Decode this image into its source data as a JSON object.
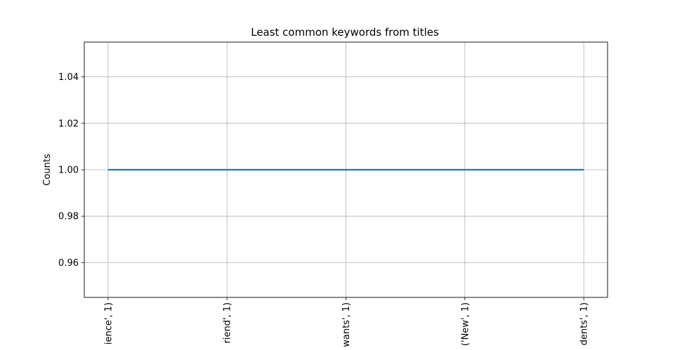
{
  "chart_data": {
    "type": "line",
    "title": "Least common keywords from titles",
    "y_label": "Counts",
    "categories": [
      "ience', 1)",
      "riend', 1)",
      "wants', 1)",
      "('New', 1)",
      "dents', 1)"
    ],
    "values": [
      1,
      1,
      1,
      1,
      1
    ],
    "color": "#1f77b4",
    "ylim": [
      0.945,
      1.055
    ],
    "yticks": [
      0.96,
      0.98,
      {
        "value": 1,
        "label": "1.00"
      },
      1.02,
      1.04
    ],
    "grid": true
  }
}
